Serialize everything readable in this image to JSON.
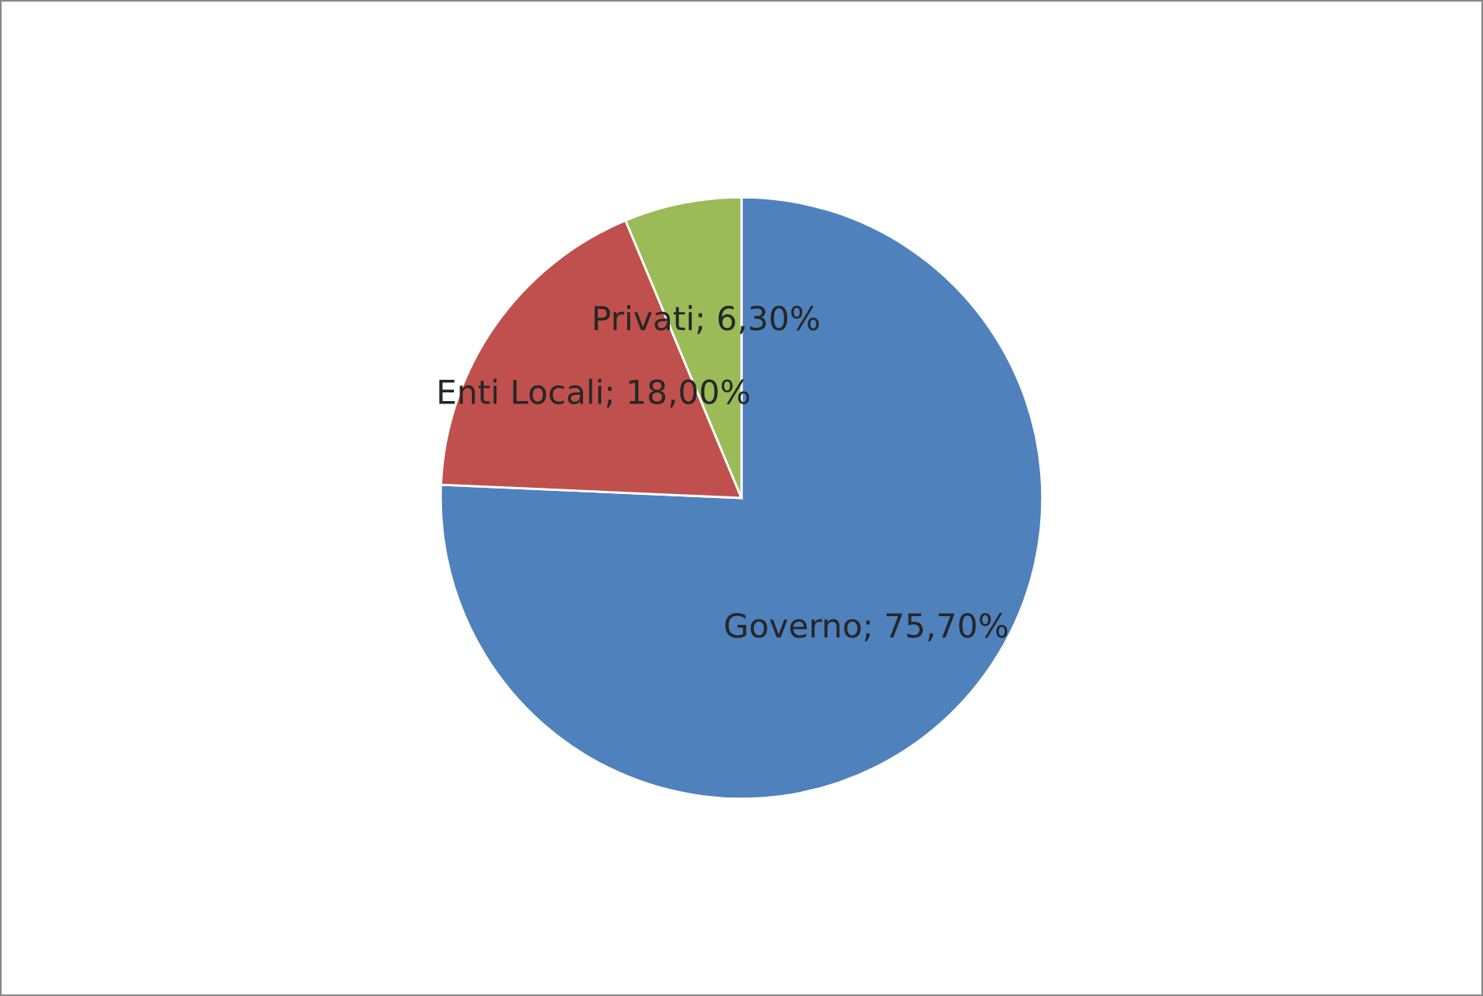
{
  "chart_data": {
    "type": "pie",
    "categories": [
      "Governo",
      "Enti Locali",
      "Privati"
    ],
    "values": [
      75.7,
      18.0,
      6.3
    ],
    "value_labels": [
      "75,70%",
      "18,00%",
      "6,30%"
    ],
    "colors": [
      "#4f81bd",
      "#c0504d",
      "#9bbb59"
    ],
    "legend": false
  }
}
